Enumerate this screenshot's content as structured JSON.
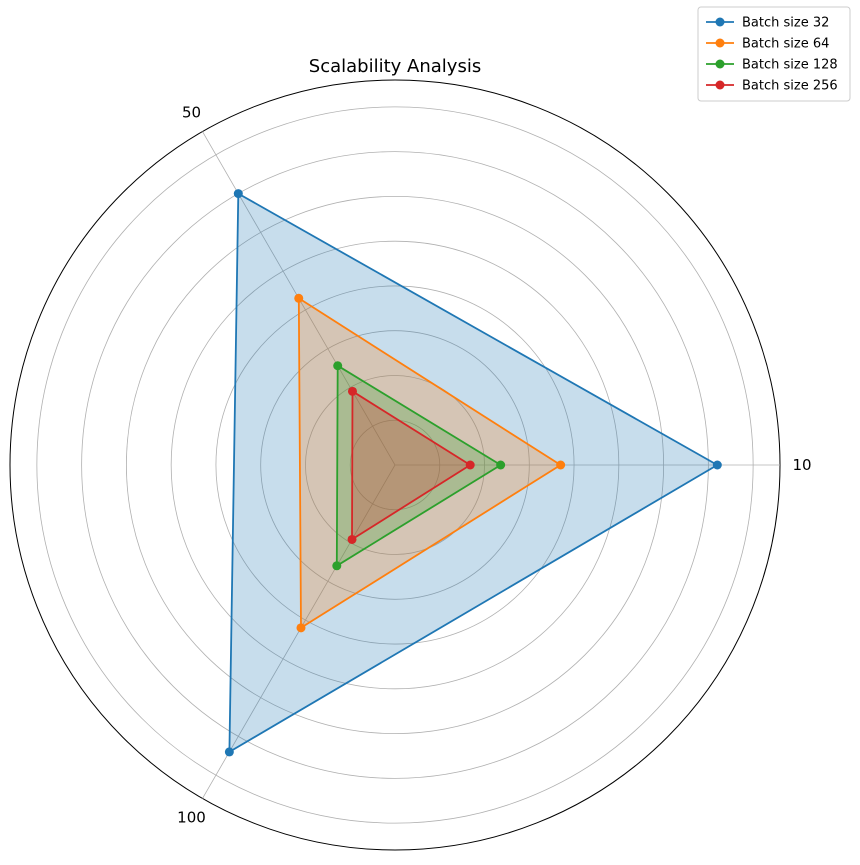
{
  "chart_data": {
    "type": "radar",
    "title": "Scalability Analysis",
    "categories": [
      "10",
      "50",
      "100"
    ],
    "r_max": 430,
    "gridlines": [
      50,
      100,
      150,
      200,
      250,
      300,
      350,
      400,
      430
    ],
    "grid": true,
    "legend_placement": "top-right",
    "series": [
      {
        "name": "Batch size 32",
        "color": "#1f77b4",
        "values": [
          360,
          350,
          370
        ]
      },
      {
        "name": "Batch size 64",
        "color": "#ff7f0e",
        "values": [
          185,
          215,
          210
        ]
      },
      {
        "name": "Batch size 128",
        "color": "#2ca02c",
        "values": [
          118,
          128,
          130
        ]
      },
      {
        "name": "Batch size 256",
        "color": "#d62728",
        "values": [
          84,
          95,
          96
        ]
      }
    ]
  }
}
